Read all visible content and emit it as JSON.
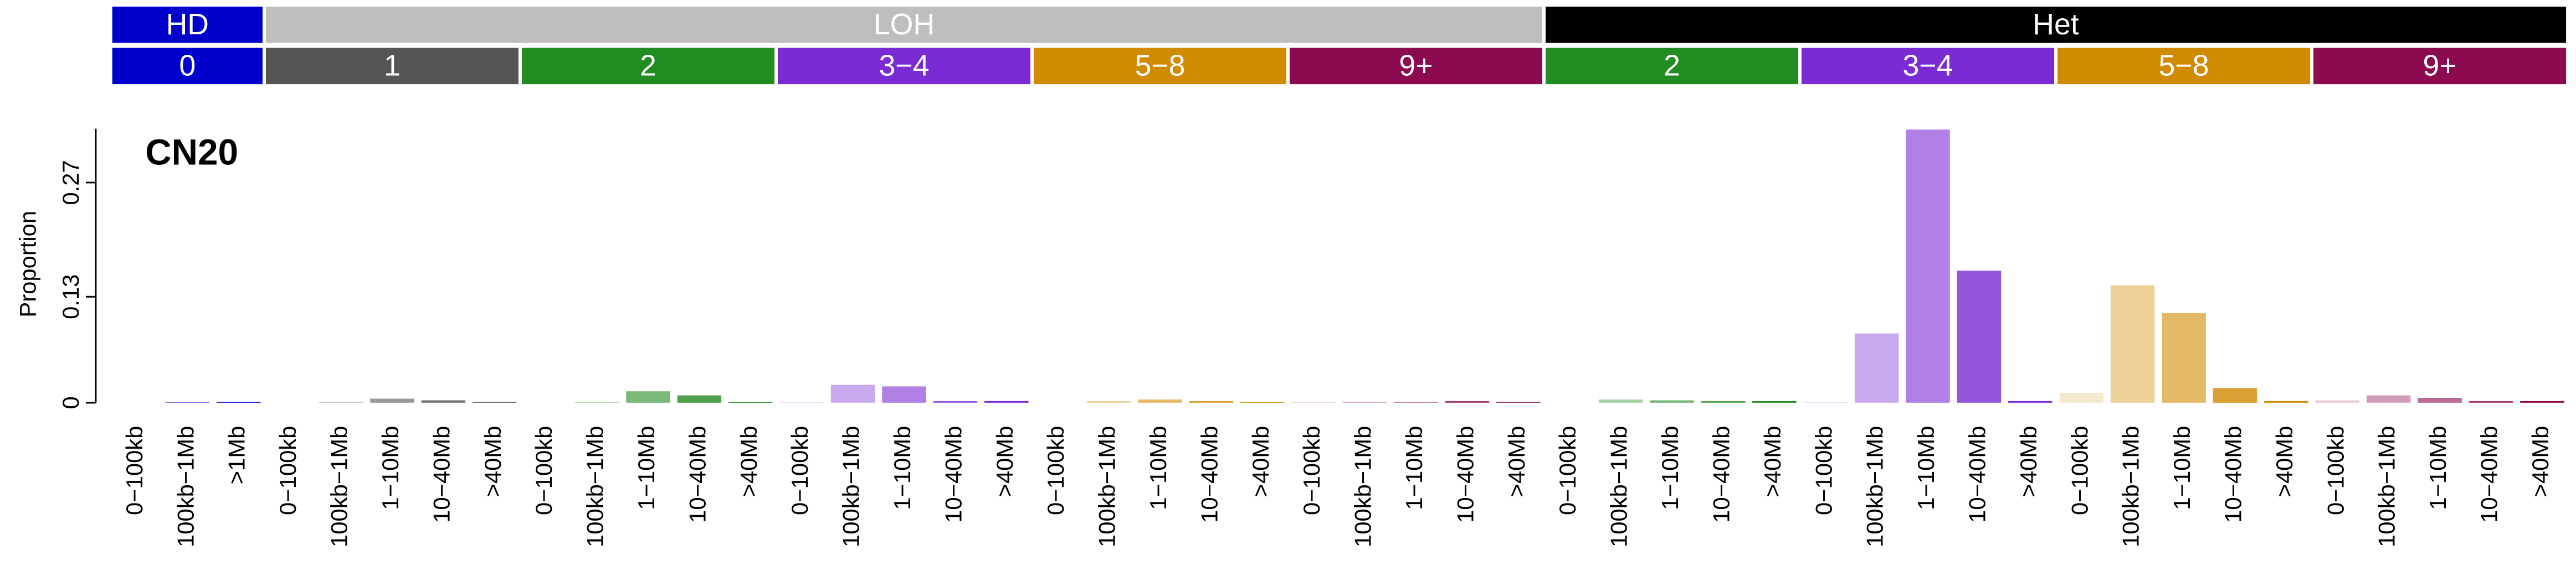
{
  "chart_data": {
    "type": "bar",
    "title": "CN20",
    "y_label": "Proportion",
    "ylim": [
      0,
      0.336
    ],
    "yticks": [
      0,
      0.13,
      0.27
    ],
    "bands": [
      {
        "label": "HD",
        "color": "#0000cc",
        "groups": [
          {
            "label": "0",
            "color": "#0000cc",
            "categories": [
              "0−100kb",
              "100kb−1Mb",
              ">1Mb"
            ],
            "values": [
              0,
              0.001,
              0.001
            ]
          }
        ]
      },
      {
        "label": "LOH",
        "color": "#bebebe",
        "groups": [
          {
            "label": "1",
            "color": "#555555",
            "categories": [
              "0−100kb",
              "100kb−1Mb",
              "1−10Mb",
              "10−40Mb",
              ">40Mb"
            ],
            "values": [
              0,
              0.001,
              0.005,
              0.003,
              0.001
            ]
          },
          {
            "label": "2",
            "color": "#228b22",
            "categories": [
              "0−100kb",
              "100kb−1Mb",
              "1−10Mb",
              "10−40Mb",
              ">40Mb"
            ],
            "values": [
              0,
              0.001,
              0.014,
              0.009,
              0.001
            ]
          },
          {
            "label": "3−4",
            "color": "#7b2bd4",
            "categories": [
              "0−100kb",
              "100kb−1Mb",
              "1−10Mb",
              "10−40Mb",
              ">40Mb"
            ],
            "values": [
              0.001,
              0.022,
              0.02,
              0.002,
              0.002
            ]
          },
          {
            "label": "5−8",
            "color": "#d18b00",
            "categories": [
              "0−100kb",
              "100kb−1Mb",
              "1−10Mb",
              "10−40Mb",
              ">40Mb"
            ],
            "values": [
              0,
              0.002,
              0.004,
              0.002,
              0.001
            ]
          },
          {
            "label": "9+",
            "color": "#8b0a50",
            "categories": [
              "0−100kb",
              "100kb−1Mb",
              "1−10Mb",
              "10−40Mb",
              ">40Mb"
            ],
            "values": [
              0.001,
              0.001,
              0.001,
              0.002,
              0.001
            ]
          }
        ]
      },
      {
        "label": "Het",
        "color": "#000000",
        "groups": [
          {
            "label": "2",
            "color": "#228b22",
            "categories": [
              "0−100kb",
              "100kb−1Mb",
              "1−10Mb",
              "10−40Mb",
              ">40Mb"
            ],
            "values": [
              0,
              0.004,
              0.003,
              0.002,
              0.002
            ]
          },
          {
            "label": "3−4",
            "color": "#7b2bd4",
            "categories": [
              "0−100kb",
              "100kb−1Mb",
              "1−10Mb",
              "10−40Mb",
              ">40Mb"
            ],
            "values": [
              0.001,
              0.085,
              0.335,
              0.162,
              0.002
            ]
          },
          {
            "label": "5−8",
            "color": "#d18b00",
            "categories": [
              "0−100kb",
              "100kb−1Mb",
              "1−10Mb",
              "10−40Mb",
              ">40Mb"
            ],
            "values": [
              0.012,
              0.144,
              0.11,
              0.018,
              0.002
            ]
          },
          {
            "label": "9+",
            "color": "#8b0a50",
            "categories": [
              "0−100kb",
              "100kb−1Mb",
              "1−10Mb",
              "10−40Mb",
              ">40Mb"
            ],
            "values": [
              0.003,
              0.009,
              0.006,
              0.002,
              0.002
            ]
          }
        ]
      }
    ]
  }
}
